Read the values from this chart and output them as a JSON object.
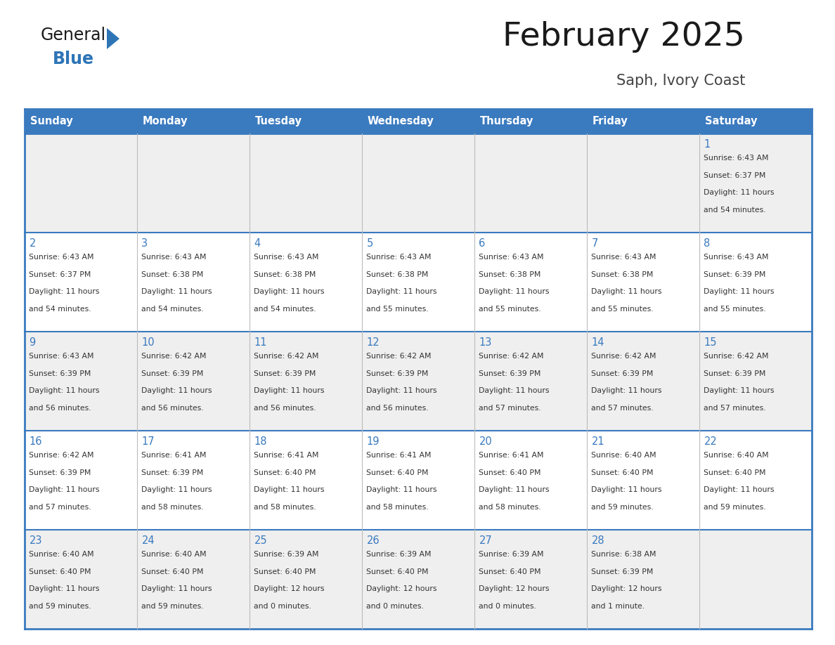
{
  "title": "February 2025",
  "subtitle": "Saph, Ivory Coast",
  "days_of_week": [
    "Sunday",
    "Monday",
    "Tuesday",
    "Wednesday",
    "Thursday",
    "Friday",
    "Saturday"
  ],
  "header_bg": "#3a7abf",
  "header_text": "#FFFFFF",
  "cell_bg_light": "#EFEFEF",
  "cell_bg_white": "#FFFFFF",
  "border_color": "#3a7abf",
  "day_num_color": "#3a7abf",
  "text_color": "#333333",
  "title_color": "#1a1a1a",
  "subtitle_color": "#444444",
  "logo_general_color": "#1a1a1a",
  "logo_blue_color": "#2E75B6",
  "calendar_data": [
    [
      null,
      null,
      null,
      null,
      null,
      null,
      {
        "day": 1,
        "sunrise": "6:43 AM",
        "sunset": "6:37 PM",
        "daylight": "11 hours and 54 minutes."
      }
    ],
    [
      {
        "day": 2,
        "sunrise": "6:43 AM",
        "sunset": "6:37 PM",
        "daylight": "11 hours and 54 minutes."
      },
      {
        "day": 3,
        "sunrise": "6:43 AM",
        "sunset": "6:38 PM",
        "daylight": "11 hours and 54 minutes."
      },
      {
        "day": 4,
        "sunrise": "6:43 AM",
        "sunset": "6:38 PM",
        "daylight": "11 hours and 54 minutes."
      },
      {
        "day": 5,
        "sunrise": "6:43 AM",
        "sunset": "6:38 PM",
        "daylight": "11 hours and 55 minutes."
      },
      {
        "day": 6,
        "sunrise": "6:43 AM",
        "sunset": "6:38 PM",
        "daylight": "11 hours and 55 minutes."
      },
      {
        "day": 7,
        "sunrise": "6:43 AM",
        "sunset": "6:38 PM",
        "daylight": "11 hours and 55 minutes."
      },
      {
        "day": 8,
        "sunrise": "6:43 AM",
        "sunset": "6:39 PM",
        "daylight": "11 hours and 55 minutes."
      }
    ],
    [
      {
        "day": 9,
        "sunrise": "6:43 AM",
        "sunset": "6:39 PM",
        "daylight": "11 hours and 56 minutes."
      },
      {
        "day": 10,
        "sunrise": "6:42 AM",
        "sunset": "6:39 PM",
        "daylight": "11 hours and 56 minutes."
      },
      {
        "day": 11,
        "sunrise": "6:42 AM",
        "sunset": "6:39 PM",
        "daylight": "11 hours and 56 minutes."
      },
      {
        "day": 12,
        "sunrise": "6:42 AM",
        "sunset": "6:39 PM",
        "daylight": "11 hours and 56 minutes."
      },
      {
        "day": 13,
        "sunrise": "6:42 AM",
        "sunset": "6:39 PM",
        "daylight": "11 hours and 57 minutes."
      },
      {
        "day": 14,
        "sunrise": "6:42 AM",
        "sunset": "6:39 PM",
        "daylight": "11 hours and 57 minutes."
      },
      {
        "day": 15,
        "sunrise": "6:42 AM",
        "sunset": "6:39 PM",
        "daylight": "11 hours and 57 minutes."
      }
    ],
    [
      {
        "day": 16,
        "sunrise": "6:42 AM",
        "sunset": "6:39 PM",
        "daylight": "11 hours and 57 minutes."
      },
      {
        "day": 17,
        "sunrise": "6:41 AM",
        "sunset": "6:39 PM",
        "daylight": "11 hours and 58 minutes."
      },
      {
        "day": 18,
        "sunrise": "6:41 AM",
        "sunset": "6:40 PM",
        "daylight": "11 hours and 58 minutes."
      },
      {
        "day": 19,
        "sunrise": "6:41 AM",
        "sunset": "6:40 PM",
        "daylight": "11 hours and 58 minutes."
      },
      {
        "day": 20,
        "sunrise": "6:41 AM",
        "sunset": "6:40 PM",
        "daylight": "11 hours and 58 minutes."
      },
      {
        "day": 21,
        "sunrise": "6:40 AM",
        "sunset": "6:40 PM",
        "daylight": "11 hours and 59 minutes."
      },
      {
        "day": 22,
        "sunrise": "6:40 AM",
        "sunset": "6:40 PM",
        "daylight": "11 hours and 59 minutes."
      }
    ],
    [
      {
        "day": 23,
        "sunrise": "6:40 AM",
        "sunset": "6:40 PM",
        "daylight": "11 hours and 59 minutes."
      },
      {
        "day": 24,
        "sunrise": "6:40 AM",
        "sunset": "6:40 PM",
        "daylight": "11 hours and 59 minutes."
      },
      {
        "day": 25,
        "sunrise": "6:39 AM",
        "sunset": "6:40 PM",
        "daylight": "12 hours and 0 minutes."
      },
      {
        "day": 26,
        "sunrise": "6:39 AM",
        "sunset": "6:40 PM",
        "daylight": "12 hours and 0 minutes."
      },
      {
        "day": 27,
        "sunrise": "6:39 AM",
        "sunset": "6:40 PM",
        "daylight": "12 hours and 0 minutes."
      },
      {
        "day": 28,
        "sunrise": "6:38 AM",
        "sunset": "6:39 PM",
        "daylight": "12 hours and 1 minute."
      },
      null
    ]
  ]
}
